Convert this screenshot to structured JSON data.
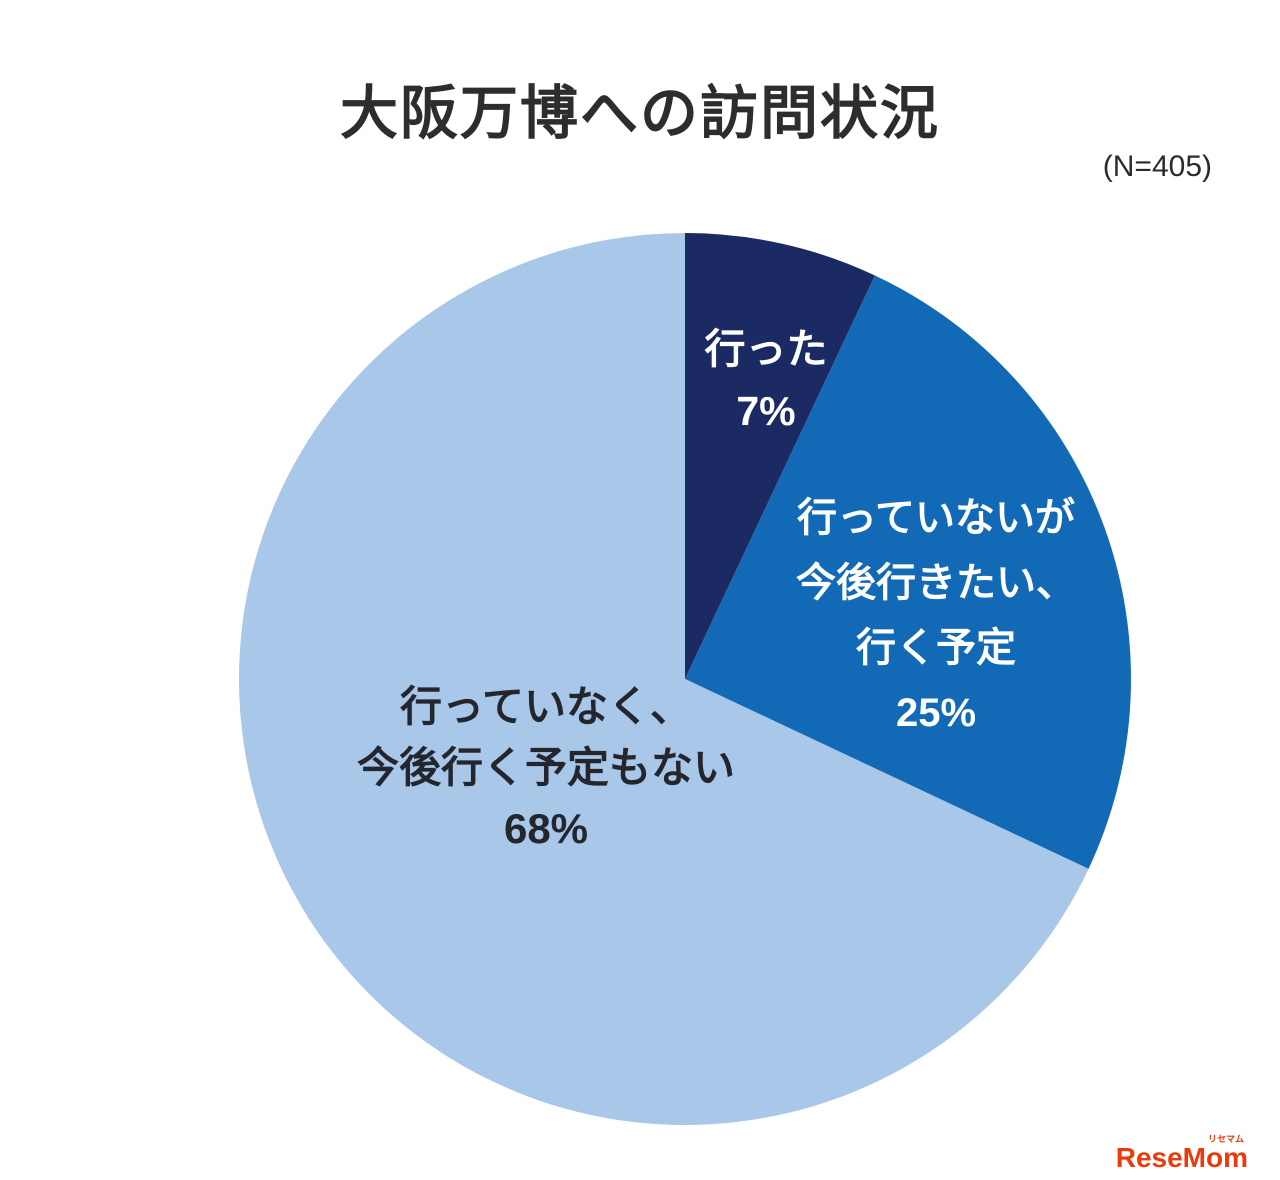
{
  "title": "大阪万博への訪問状況",
  "sample_label": "(N=405)",
  "chart_data": {
    "type": "pie",
    "title": "大阪万博への訪問状況",
    "n": 405,
    "start_angle_deg": 0,
    "direction": "clockwise",
    "categories": [
      "行った",
      "行っていないが今後行きたい、行く予定",
      "行っていなく、今後行く予定もない"
    ],
    "values": [
      7,
      25,
      68
    ],
    "slices": [
      {
        "id": "visited",
        "value": 7,
        "color": "#1b2a63",
        "label_color": "#ffffff",
        "label_lines": [
          "行った",
          "7%"
        ]
      },
      {
        "id": "plan-to-visit",
        "value": 25,
        "color": "#1269b5",
        "label_color": "#ffffff",
        "label_lines": [
          "行っていないが",
          "今後行きたい、",
          "行く予定",
          "25%"
        ]
      },
      {
        "id": "no-plan",
        "value": 68,
        "color": "#a9c7e9",
        "label_color": "#24262e",
        "label_lines": [
          "行っていなく、",
          "今後行く予定もない",
          "68%"
        ]
      }
    ]
  },
  "logo": {
    "brand": "ReseMom",
    "subtext": "リセマム",
    "color": "#ea3b0c"
  }
}
